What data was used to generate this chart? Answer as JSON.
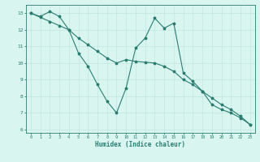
{
  "xlabel": "Humidex (Indice chaleur)",
  "xlim": [
    -0.5,
    23.5
  ],
  "ylim": [
    5.8,
    13.5
  ],
  "bg_color": "#d8f5f0",
  "line_color": "#2a7d6e",
  "grid_color": "#c0e8e0",
  "xticks": [
    0,
    1,
    2,
    3,
    4,
    5,
    6,
    7,
    8,
    9,
    10,
    11,
    12,
    13,
    14,
    15,
    16,
    17,
    18,
    19,
    20,
    21,
    22,
    23
  ],
  "yticks": [
    6,
    7,
    8,
    9,
    10,
    11,
    12,
    13
  ],
  "line1_x": [
    0,
    1,
    2,
    3,
    4,
    5,
    6,
    7,
    8,
    9,
    10,
    11,
    12,
    13,
    14,
    15,
    16,
    17,
    18,
    19,
    20,
    21,
    22,
    23
  ],
  "line1_y": [
    13.0,
    12.8,
    13.1,
    12.8,
    12.0,
    10.6,
    9.8,
    8.7,
    7.7,
    7.0,
    8.5,
    10.9,
    11.5,
    12.7,
    12.1,
    12.4,
    9.4,
    8.9,
    8.3,
    7.5,
    7.2,
    7.0,
    6.7,
    6.3
  ],
  "line2_x": [
    0,
    1,
    2,
    3,
    4,
    5,
    6,
    7,
    8,
    9,
    10,
    11,
    12,
    13,
    14,
    15,
    16,
    17,
    18,
    19,
    20,
    21,
    22,
    23
  ],
  "line2_y": [
    13.0,
    12.75,
    12.5,
    12.25,
    12.0,
    11.5,
    11.1,
    10.7,
    10.3,
    10.0,
    10.2,
    10.1,
    10.05,
    10.0,
    9.8,
    9.5,
    9.0,
    8.7,
    8.3,
    7.9,
    7.5,
    7.2,
    6.8,
    6.3
  ]
}
